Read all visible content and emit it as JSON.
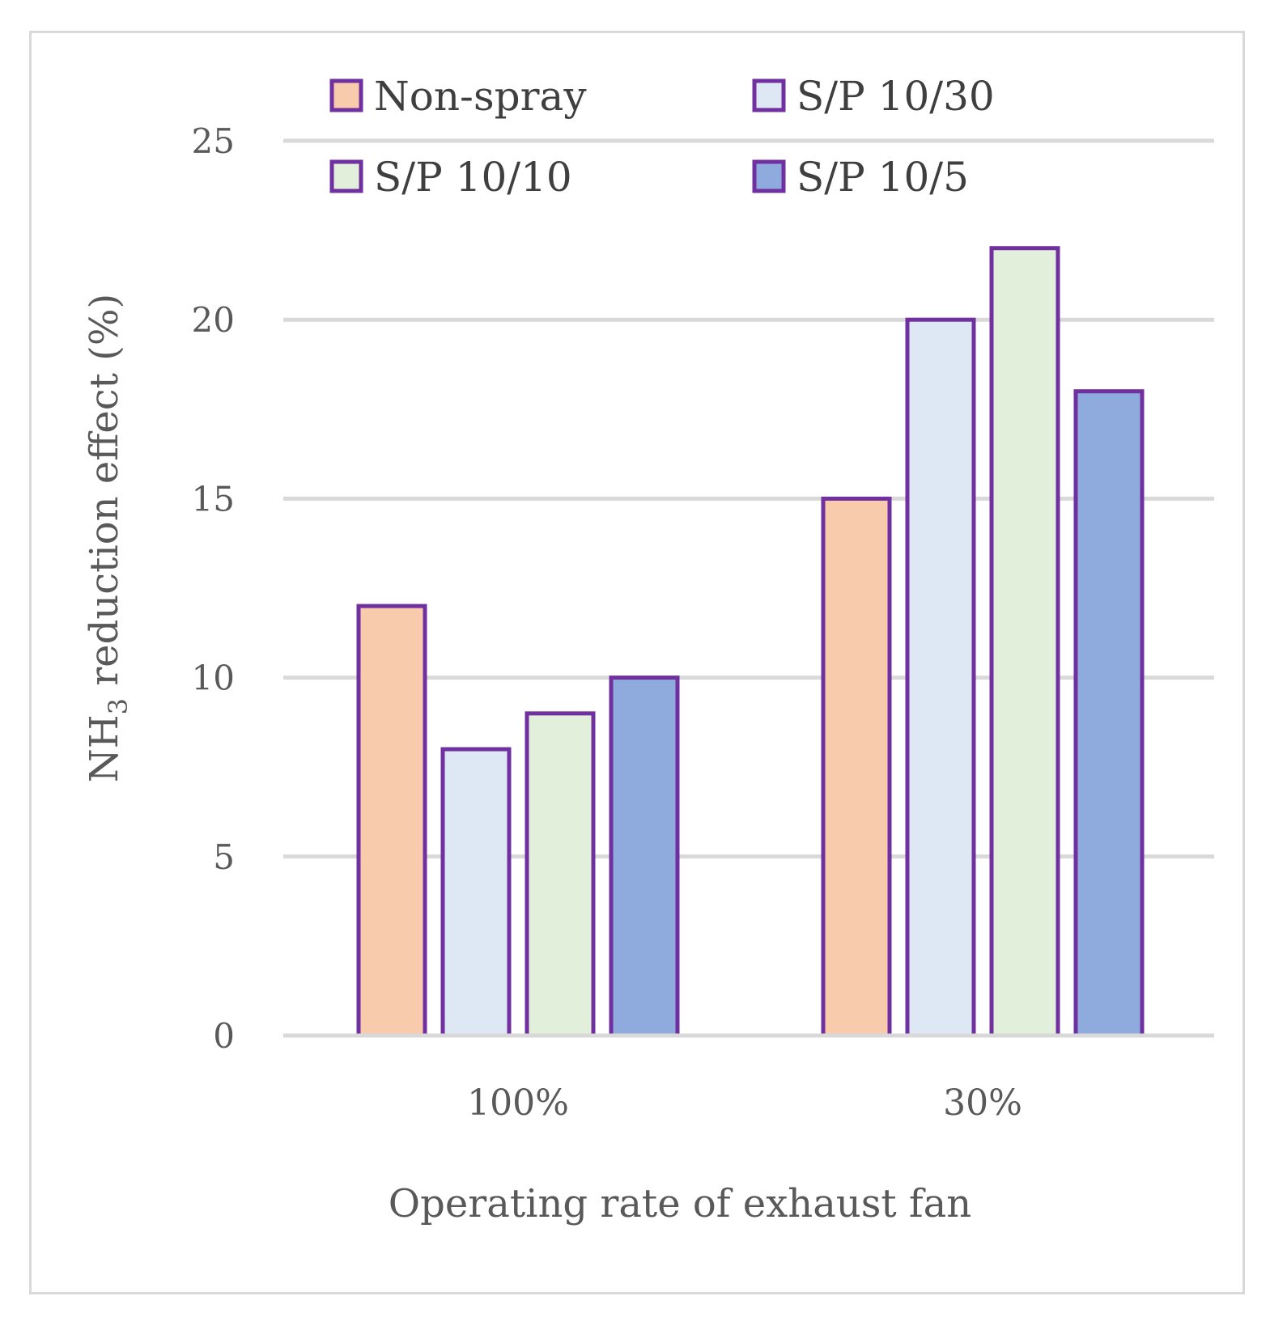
{
  "chart_data": {
    "type": "bar",
    "title": "",
    "xlabel": "Operating rate of exhaust fan",
    "ylabel_main": "NH",
    "ylabel_sub": "3",
    "ylabel_rest": " reduction effect (%)",
    "ylim": [
      0,
      25
    ],
    "yticks": [
      0,
      5,
      10,
      15,
      20,
      25
    ],
    "categories": [
      "100%",
      "30%"
    ],
    "series": [
      {
        "name": "Non-spray",
        "values": [
          12,
          15
        ],
        "color": "#f8cbad"
      },
      {
        "name": "S/P 10/30",
        "values": [
          8,
          20
        ],
        "color": "#dee8f5"
      },
      {
        "name": "S/P 10/10",
        "values": [
          9,
          22
        ],
        "color": "#e2efda"
      },
      {
        "name": "S/P 10/5",
        "values": [
          10,
          18
        ],
        "color": "#8faadc"
      }
    ],
    "bar_outline_color": "#7030a0",
    "grid": true,
    "legend_position": "top"
  }
}
